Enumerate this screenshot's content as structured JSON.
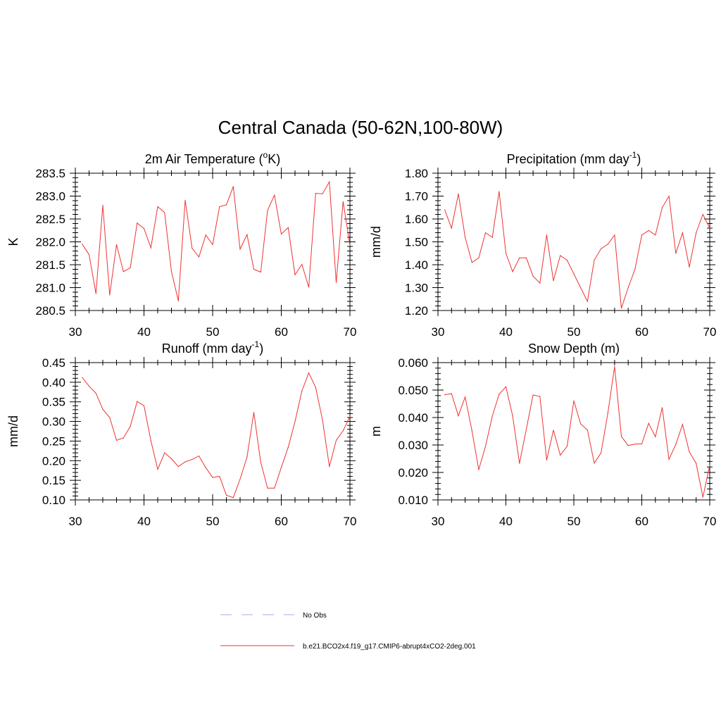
{
  "title": "Central Canada (50-62N,100-80W)",
  "legend": [
    {
      "label": "No Obs",
      "color": "#aaaaee",
      "dash": true
    },
    {
      "label": "b.e21.BCO2x4.f19_g17.CMIP6-abrupt4xCO2-2deg.001",
      "color": "#ee3333",
      "dash": false
    }
  ],
  "chart_data": [
    {
      "type": "line",
      "title": "2m Air Temperature",
      "title_sup": "o",
      "title_pre": "2m Air Temperature (",
      "title_post": "K)",
      "ylabel": "K",
      "xlim": [
        30,
        70
      ],
      "ylim": [
        280.5,
        283.5
      ],
      "xticks": [
        "30",
        "40",
        "50",
        "60",
        "70"
      ],
      "yticks": [
        "280.5",
        "281.0",
        "281.5",
        "282.0",
        "282.5",
        "283.0",
        "283.5"
      ],
      "series": [
        {
          "color": "#ee3333",
          "x": [
            31,
            32,
            33,
            34,
            35,
            36,
            37,
            38,
            39,
            40,
            41,
            42,
            43,
            44,
            45,
            46,
            47,
            48,
            49,
            50,
            51,
            52,
            53,
            54,
            55,
            56,
            57,
            58,
            59,
            60,
            61,
            62,
            63,
            64,
            65,
            66,
            67,
            68,
            69,
            70
          ],
          "y": [
            281.95,
            281.72,
            280.87,
            282.8,
            280.84,
            281.94,
            281.35,
            281.43,
            282.41,
            282.29,
            281.87,
            282.77,
            282.64,
            281.35,
            280.71,
            282.91,
            281.86,
            281.67,
            282.15,
            281.94,
            282.77,
            282.81,
            283.21,
            281.84,
            282.16,
            281.4,
            281.34,
            282.69,
            283.02,
            282.17,
            282.31,
            281.28,
            281.51,
            281.01,
            283.06,
            283.05,
            283.31,
            281.11,
            282.88,
            281.92
          ]
        }
      ]
    },
    {
      "type": "line",
      "title": "Precipitation",
      "title_pre": "Precipitation (mm day",
      "title_sup": "-1",
      "title_post": ")",
      "ylabel": "mm/d",
      "xlim": [
        30,
        70
      ],
      "ylim": [
        1.2,
        1.8
      ],
      "xticks": [
        "30",
        "40",
        "50",
        "60",
        "70"
      ],
      "yticks": [
        "1.20",
        "1.30",
        "1.40",
        "1.50",
        "1.60",
        "1.70",
        "1.80"
      ],
      "series": [
        {
          "color": "#ee3333",
          "x": [
            31,
            32,
            33,
            34,
            35,
            36,
            37,
            38,
            39,
            40,
            41,
            42,
            43,
            44,
            45,
            46,
            47,
            48,
            49,
            50,
            51,
            52,
            53,
            54,
            55,
            56,
            57,
            58,
            59,
            60,
            61,
            62,
            63,
            64,
            65,
            66,
            67,
            68,
            69,
            70
          ],
          "y": [
            1.64,
            1.56,
            1.71,
            1.52,
            1.41,
            1.43,
            1.54,
            1.52,
            1.72,
            1.45,
            1.37,
            1.43,
            1.43,
            1.35,
            1.32,
            1.53,
            1.33,
            1.44,
            1.42,
            1.36,
            1.3,
            1.24,
            1.42,
            1.47,
            1.49,
            1.53,
            1.21,
            1.3,
            1.38,
            1.53,
            1.55,
            1.53,
            1.65,
            1.7,
            1.45,
            1.54,
            1.39,
            1.54,
            1.62,
            1.56
          ]
        }
      ]
    },
    {
      "type": "line",
      "title": "Runoff",
      "title_pre": "Runoff (mm day",
      "title_sup": "-1",
      "title_post": ")",
      "ylabel": "mm/d",
      "xlim": [
        30,
        70
      ],
      "ylim": [
        0.1,
        0.45
      ],
      "xticks": [
        "30",
        "40",
        "50",
        "60",
        "70"
      ],
      "yticks": [
        "0.10",
        "0.15",
        "0.20",
        "0.25",
        "0.30",
        "0.35",
        "0.40",
        "0.45"
      ],
      "series": [
        {
          "color": "#ee3333",
          "x": [
            31,
            32,
            33,
            34,
            35,
            36,
            37,
            38,
            39,
            40,
            41,
            42,
            43,
            44,
            45,
            46,
            47,
            48,
            49,
            50,
            51,
            52,
            53,
            54,
            55,
            56,
            57,
            58,
            59,
            60,
            61,
            62,
            63,
            64,
            65,
            66,
            67,
            68,
            69,
            70
          ],
          "y": [
            0.412,
            0.39,
            0.372,
            0.331,
            0.31,
            0.252,
            0.258,
            0.287,
            0.351,
            0.34,
            0.251,
            0.178,
            0.22,
            0.205,
            0.185,
            0.197,
            0.203,
            0.212,
            0.182,
            0.157,
            0.16,
            0.112,
            0.106,
            0.153,
            0.209,
            0.323,
            0.196,
            0.13,
            0.13,
            0.183,
            0.234,
            0.3,
            0.378,
            0.424,
            0.387,
            0.304,
            0.185,
            0.252,
            0.276,
            0.313
          ]
        }
      ]
    },
    {
      "type": "line",
      "title": "Snow Depth (m)",
      "title_pre": "Snow Depth (m)",
      "title_sup": "",
      "title_post": "",
      "ylabel": "m",
      "xlim": [
        30,
        70
      ],
      "ylim": [
        0.01,
        0.06
      ],
      "xticks": [
        "30",
        "40",
        "50",
        "60",
        "70"
      ],
      "yticks": [
        "0.010",
        "0.020",
        "0.030",
        "0.040",
        "0.050",
        "0.060"
      ],
      "series": [
        {
          "color": "#ee3333",
          "x": [
            31,
            32,
            33,
            34,
            35,
            36,
            37,
            38,
            39,
            40,
            41,
            42,
            43,
            44,
            45,
            46,
            47,
            48,
            49,
            50,
            51,
            52,
            53,
            54,
            55,
            56,
            57,
            58,
            59,
            60,
            61,
            62,
            63,
            64,
            65,
            66,
            67,
            68,
            69,
            70
          ],
          "y": [
            0.0483,
            0.0487,
            0.0406,
            0.0475,
            0.0352,
            0.021,
            0.0295,
            0.0405,
            0.0485,
            0.0512,
            0.0406,
            0.0233,
            0.0358,
            0.0482,
            0.0477,
            0.0245,
            0.0354,
            0.0263,
            0.0295,
            0.0461,
            0.0377,
            0.0355,
            0.0234,
            0.0271,
            0.0416,
            0.0586,
            0.0331,
            0.0298,
            0.0303,
            0.0304,
            0.0379,
            0.033,
            0.0436,
            0.0248,
            0.0302,
            0.0375,
            0.0275,
            0.0233,
            0.011,
            0.0227
          ]
        }
      ]
    }
  ]
}
